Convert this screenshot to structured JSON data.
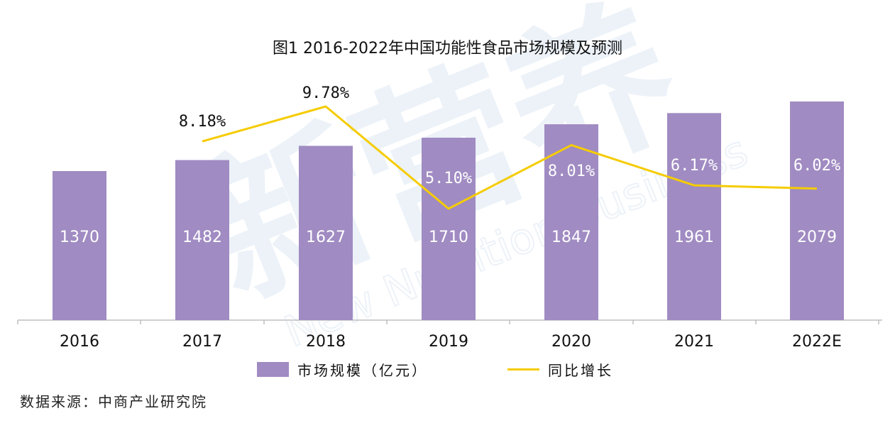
{
  "chart_data": {
    "type": "bar",
    "title": "图1 2016-2022年中国功能性食品市场规模及预测",
    "categories": [
      "2016",
      "2017",
      "2018",
      "2019",
      "2020",
      "2021",
      "2022E"
    ],
    "series": [
      {
        "name": "市场规模（亿元）",
        "type": "bar",
        "values": [
          1370,
          1482,
          1627,
          1710,
          1847,
          1961,
          2079
        ],
        "labels": [
          "1370",
          "1482",
          "1627",
          "1710",
          "1847",
          "1961",
          "2079"
        ]
      },
      {
        "name": "同比增长",
        "type": "line",
        "values": [
          null,
          8.18,
          9.78,
          5.1,
          8.01,
          6.17,
          6.02
        ],
        "labels": [
          "",
          "8.18%",
          "9.78%",
          "5.10%",
          "8.01%",
          "6.17%",
          "6.02%"
        ]
      }
    ],
    "ylim_bar": [
      0,
      2200
    ],
    "ylim_line": [
      0,
      12
    ],
    "colors": {
      "bar": "#a08bc2",
      "line": "#f5cc00",
      "bar_label": "#ffffff",
      "watermark": "#dde8f3"
    },
    "grid": false,
    "legend_position": "bottom"
  },
  "legend": {
    "bar_label": "市场规模（亿元）",
    "line_label": "同比增长"
  },
  "source": "数据来源：中商产业研究院",
  "watermark": {
    "main": "新营养",
    "sub": "New Nutrition Business"
  }
}
